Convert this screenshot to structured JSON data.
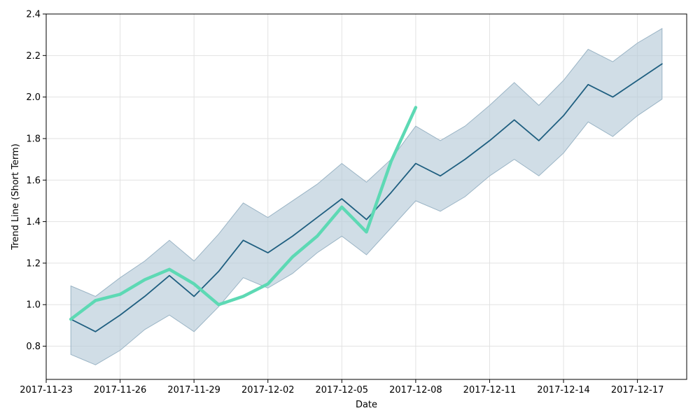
{
  "chart_data": {
    "type": "line",
    "title": "",
    "xlabel": "Date",
    "ylabel": "Trend Line (Short Term)",
    "xlim": [
      "2017-11-23T00:00",
      "2017-12-19T00:00"
    ],
    "ylim": [
      0.64,
      2.4
    ],
    "x_ticks": [
      "2017-11-23",
      "2017-11-26",
      "2017-11-29",
      "2017-12-02",
      "2017-12-05",
      "2017-12-08",
      "2017-12-11",
      "2017-12-14",
      "2017-12-17"
    ],
    "y_ticks": [
      "0.8",
      "1.0",
      "1.2",
      "1.4",
      "1.6",
      "1.8",
      "2.0",
      "2.2",
      "2.4"
    ],
    "grid": true,
    "colors": {
      "forecast": "#1f5f80",
      "band": "#b7cbd8",
      "band_edge": "#9ab4c5",
      "actual": "#5dd9b4",
      "grid": "#e2e2e2"
    },
    "series": [
      {
        "role": "forecast",
        "x": [
          "2017-11-24",
          "2017-11-25",
          "2017-11-26",
          "2017-11-27",
          "2017-11-28",
          "2017-11-29",
          "2017-11-30",
          "2017-12-01",
          "2017-12-02",
          "2017-12-03",
          "2017-12-04",
          "2017-12-05",
          "2017-12-06",
          "2017-12-07",
          "2017-12-08",
          "2017-12-09",
          "2017-12-10",
          "2017-12-11",
          "2017-12-12",
          "2017-12-13",
          "2017-12-14",
          "2017-12-15",
          "2017-12-16",
          "2017-12-17",
          "2017-12-18"
        ],
        "values": [
          0.93,
          0.87,
          0.95,
          1.04,
          1.14,
          1.04,
          1.16,
          1.31,
          1.25,
          1.33,
          1.42,
          1.51,
          1.41,
          1.54,
          1.68,
          1.62,
          1.7,
          1.79,
          1.89,
          1.79,
          1.91,
          2.06,
          2.0,
          2.08,
          2.16
        ],
        "lower": [
          0.76,
          0.71,
          0.78,
          0.88,
          0.95,
          0.87,
          0.99,
          1.13,
          1.08,
          1.15,
          1.25,
          1.33,
          1.24,
          1.37,
          1.5,
          1.45,
          1.52,
          1.62,
          1.7,
          1.62,
          1.73,
          1.88,
          1.81,
          1.91,
          1.99
        ],
        "upper": [
          1.09,
          1.04,
          1.13,
          1.21,
          1.31,
          1.21,
          1.34,
          1.49,
          1.42,
          1.5,
          1.58,
          1.68,
          1.59,
          1.7,
          1.86,
          1.79,
          1.86,
          1.96,
          2.07,
          1.96,
          2.08,
          2.23,
          2.17,
          2.26,
          2.33
        ]
      },
      {
        "role": "actual",
        "x": [
          "2017-11-24",
          "2017-11-25",
          "2017-11-26",
          "2017-11-27",
          "2017-11-28",
          "2017-11-29",
          "2017-11-30",
          "2017-12-01",
          "2017-12-02",
          "2017-12-03",
          "2017-12-04",
          "2017-12-05",
          "2017-12-06",
          "2017-12-07",
          "2017-12-08"
        ],
        "values": [
          0.93,
          1.02,
          1.05,
          1.12,
          1.17,
          1.1,
          1.0,
          1.04,
          1.1,
          1.23,
          1.33,
          1.47,
          1.35,
          1.69,
          1.95
        ]
      }
    ]
  }
}
